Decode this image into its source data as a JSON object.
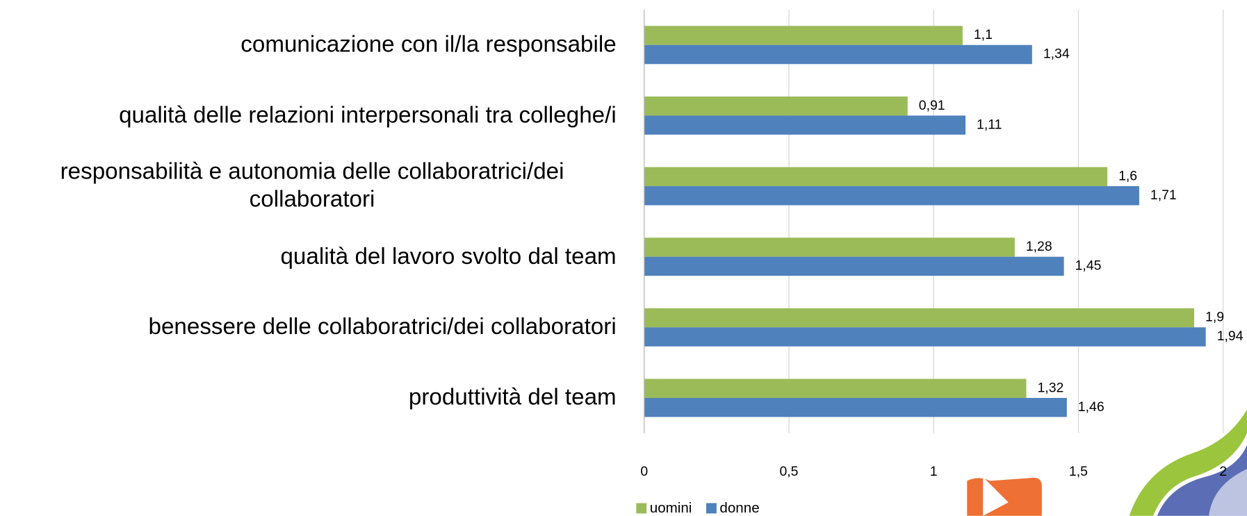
{
  "chart_data": {
    "type": "bar",
    "orientation": "horizontal",
    "categories": [
      "comunicazione con il/la responsabile",
      "qualità delle relazioni interpersonali tra colleghe/i",
      "responsabilità e autonomia delle collaboratrici/dei collaboratori",
      "qualità del lavoro svolto dal team",
      "benessere delle collaboratrici/dei collaboratori",
      "produttività del team"
    ],
    "series": [
      {
        "name": "uomini",
        "color": "#9bbb59",
        "values": [
          1.1,
          0.91,
          1.6,
          1.28,
          1.9,
          1.32
        ],
        "value_labels": [
          "1,1",
          "0,91",
          "1,6",
          "1,28",
          "1,9",
          "1,32"
        ]
      },
      {
        "name": "donne",
        "color": "#4f81bd",
        "values": [
          1.34,
          1.11,
          1.71,
          1.45,
          1.94,
          1.46
        ],
        "value_labels": [
          "1,34",
          "1,11",
          "1,71",
          "1,45",
          "1,94",
          "1,46"
        ]
      }
    ],
    "xlim": [
      0,
      2
    ],
    "xticks": [
      0,
      {
        "value": 0.5,
        "label": "0,5"
      },
      1,
      {
        "value": 1.5,
        "label": "1,5"
      },
      2
    ],
    "grid": true,
    "legend": "bottom-left"
  }
}
